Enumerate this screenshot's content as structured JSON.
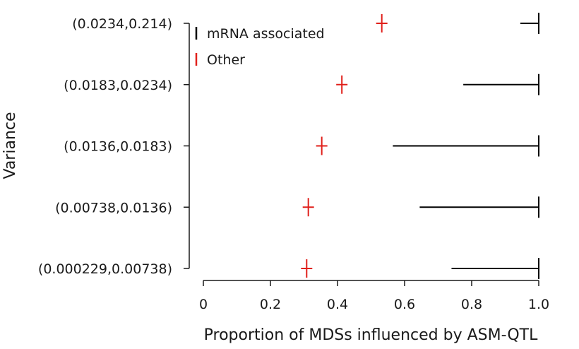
{
  "chart_data": {
    "type": "errorbar",
    "title": "",
    "xlabel": "Proportion of MDSs influenced by ASM-QTL",
    "ylabel": "Variance",
    "xlim": [
      0,
      1.0
    ],
    "xticks": [
      0,
      0.2,
      0.4,
      0.6,
      0.8,
      1.0
    ],
    "xtick_labels": [
      "0",
      "0.2",
      "0.4",
      "0.6",
      "0.8",
      "1.0"
    ],
    "categories": [
      "(0.0234,0.214)",
      "(0.0183,0.0234)",
      "(0.0136,0.0183)",
      "(0.00738,0.0136)",
      "(0.000229,0.00738)"
    ],
    "grid": false,
    "legend_position": "top-left",
    "series": [
      {
        "name": "mRNA associated",
        "color": "#000000",
        "ranges": [
          [
            0.945,
            1.0
          ],
          [
            0.775,
            1.0
          ],
          [
            0.565,
            1.0
          ],
          [
            0.645,
            1.0
          ],
          [
            0.74,
            1.0
          ]
        ]
      },
      {
        "name": "Other",
        "color": "#e0201b",
        "points": [
          0.532,
          0.413,
          0.353,
          0.313,
          0.308
        ]
      }
    ]
  }
}
